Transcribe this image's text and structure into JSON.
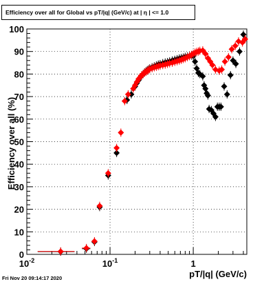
{
  "chart_data": {
    "type": "scatter",
    "title": "Efficiency over all for Global vs pT/|q| (GeV/c) at |  η | <= 1.0",
    "xlabel": "pT/|q| (GeV/c)",
    "ylabel": "Efficiency over all (%)",
    "xscale": "log",
    "xlim": [
      0.01,
      4.4
    ],
    "ylim": [
      0,
      100
    ],
    "yticks": [
      0,
      10,
      20,
      30,
      40,
      50,
      60,
      70,
      80,
      90,
      100
    ],
    "xtick_labels": [
      {
        "value": 0.01,
        "base": "10",
        "exp": "-2"
      },
      {
        "value": 0.1,
        "base": "10",
        "exp": "-1"
      },
      {
        "value": 1,
        "base": "1",
        "exp": ""
      }
    ],
    "grid": true,
    "series": [
      {
        "color": "#000000",
        "marker": "diamond",
        "points": [
          [
            0.0255,
            1.2,
            0.012
          ],
          [
            0.052,
            2.5,
            0.006
          ],
          [
            0.065,
            5.5,
            0.004
          ],
          [
            0.075,
            21.0,
            0.004
          ],
          [
            0.095,
            35.0,
            0.006
          ],
          [
            0.12,
            45.0,
            0.006
          ],
          [
            0.16,
            68.5,
            0.003
          ],
          [
            0.18,
            71.0,
            0.003
          ],
          [
            0.2,
            74.5,
            0.002
          ],
          [
            0.21,
            76.0,
            0.002
          ],
          [
            0.22,
            77.2,
            0.002
          ],
          [
            0.23,
            78.5,
            0.002
          ],
          [
            0.24,
            79.3,
            0.002
          ],
          [
            0.25,
            80.0,
            0.002
          ],
          [
            0.26,
            80.7,
            0.002
          ],
          [
            0.27,
            81.2,
            0.002
          ],
          [
            0.28,
            81.7,
            0.002
          ],
          [
            0.29,
            82.1,
            0.002
          ],
          [
            0.3,
            82.5,
            0.002
          ],
          [
            0.32,
            83.0,
            0.002
          ],
          [
            0.34,
            83.4,
            0.002
          ],
          [
            0.36,
            83.8,
            0.002
          ],
          [
            0.38,
            84.2,
            0.002
          ],
          [
            0.4,
            84.4,
            0.002
          ],
          [
            0.43,
            84.8,
            0.002
          ],
          [
            0.46,
            85.1,
            0.002
          ],
          [
            0.49,
            85.3,
            0.002
          ],
          [
            0.52,
            85.6,
            0.002
          ],
          [
            0.56,
            86.0,
            0.002
          ],
          [
            0.6,
            86.3,
            0.002
          ],
          [
            0.64,
            86.6,
            0.002
          ],
          [
            0.68,
            86.9,
            0.002
          ],
          [
            0.72,
            87.1,
            0.002
          ],
          [
            0.76,
            87.3,
            0.002
          ],
          [
            0.8,
            87.6,
            0.002
          ],
          [
            0.85,
            87.8,
            0.002
          ],
          [
            0.9,
            88.0,
            0.002
          ],
          [
            0.95,
            88.2,
            0.002
          ],
          [
            1.0,
            88.0,
            0.002
          ],
          [
            1.05,
            85.5,
            0.002
          ],
          [
            1.1,
            82.5,
            0.002
          ],
          [
            1.15,
            80.5,
            0.002
          ],
          [
            1.2,
            80.0,
            0.002
          ],
          [
            1.3,
            79.0,
            0.002
          ],
          [
            1.35,
            75.0,
            0.002
          ],
          [
            1.4,
            73.5,
            0.002
          ],
          [
            1.45,
            71.5,
            0.002
          ],
          [
            1.5,
            70.5,
            0.002
          ],
          [
            1.55,
            64.5,
            0.002
          ],
          [
            1.65,
            64.0,
            0.002
          ],
          [
            1.75,
            62.5,
            0.002
          ],
          [
            1.85,
            61.0,
            0.002
          ],
          [
            1.95,
            65.5,
            0.002
          ],
          [
            2.05,
            65.5,
            0.002
          ],
          [
            2.15,
            65.5,
            0.002
          ],
          [
            2.35,
            74.5,
            0.002
          ],
          [
            2.55,
            71.0,
            0.002
          ],
          [
            2.8,
            79.5,
            0.002
          ],
          [
            3.0,
            86.0,
            0.002
          ],
          [
            3.25,
            84.5,
            0.002
          ],
          [
            3.6,
            90.0,
            0.002
          ],
          [
            4.0,
            97.5,
            0.002
          ]
        ]
      },
      {
        "color": "#ff0000",
        "marker": "diamond",
        "points": [
          [
            0.0255,
            1.3,
            0.012
          ],
          [
            0.052,
            2.8,
            0.006
          ],
          [
            0.065,
            5.8,
            0.004
          ],
          [
            0.075,
            21.5,
            0.004
          ],
          [
            0.095,
            36.0,
            0.006
          ],
          [
            0.12,
            47.2,
            0.006
          ],
          [
            0.135,
            54.0,
            0.003
          ],
          [
            0.15,
            68.0,
            0.003
          ],
          [
            0.165,
            71.0,
            0.003
          ],
          [
            0.19,
            73.5,
            0.002
          ],
          [
            0.2,
            75.0,
            0.002
          ],
          [
            0.21,
            76.5,
            0.002
          ],
          [
            0.22,
            77.8,
            0.002
          ],
          [
            0.23,
            78.6,
            0.002
          ],
          [
            0.24,
            79.5,
            0.002
          ],
          [
            0.25,
            80.0,
            0.002
          ],
          [
            0.26,
            80.6,
            0.002
          ],
          [
            0.27,
            81.0,
            0.002
          ],
          [
            0.28,
            81.4,
            0.002
          ],
          [
            0.29,
            81.8,
            0.002
          ],
          [
            0.3,
            82.2,
            0.002
          ],
          [
            0.32,
            82.6,
            0.002
          ],
          [
            0.34,
            83.0,
            0.002
          ],
          [
            0.36,
            83.2,
            0.002
          ],
          [
            0.38,
            83.5,
            0.002
          ],
          [
            0.4,
            83.7,
            0.002
          ],
          [
            0.43,
            84.0,
            0.002
          ],
          [
            0.46,
            84.2,
            0.002
          ],
          [
            0.49,
            84.5,
            0.002
          ],
          [
            0.52,
            84.8,
            0.002
          ],
          [
            0.56,
            85.0,
            0.002
          ],
          [
            0.6,
            85.4,
            0.002
          ],
          [
            0.64,
            85.7,
            0.002
          ],
          [
            0.68,
            86.0,
            0.002
          ],
          [
            0.72,
            86.3,
            0.002
          ],
          [
            0.76,
            86.7,
            0.002
          ],
          [
            0.8,
            87.0,
            0.002
          ],
          [
            0.85,
            87.5,
            0.002
          ],
          [
            0.9,
            88.0,
            0.002
          ],
          [
            0.95,
            88.5,
            0.002
          ],
          [
            1.0,
            89.0,
            0.002
          ],
          [
            1.05,
            89.5,
            0.002
          ],
          [
            1.1,
            89.8,
            0.002
          ],
          [
            1.15,
            90.0,
            0.002
          ],
          [
            1.2,
            90.3,
            0.002
          ],
          [
            1.3,
            90.5,
            0.002
          ],
          [
            1.4,
            89.0,
            0.002
          ],
          [
            1.5,
            87.0,
            0.002
          ],
          [
            1.6,
            85.5,
            0.002
          ],
          [
            1.7,
            84.0,
            0.002
          ],
          [
            1.85,
            82.0,
            0.002
          ],
          [
            2.05,
            81.5,
            0.002
          ],
          [
            2.2,
            82.0,
            0.002
          ],
          [
            2.4,
            85.5,
            0.002
          ],
          [
            2.65,
            87.5,
            0.002
          ],
          [
            2.9,
            91.0,
            0.002
          ],
          [
            3.2,
            92.5,
            0.002
          ],
          [
            3.5,
            94.5,
            0.002
          ],
          [
            3.9,
            94.0,
            0.002
          ],
          [
            4.2,
            95.5,
            0.002
          ]
        ]
      }
    ]
  },
  "footer": {
    "timestamp": "Fri Nov 20 09:14:17 2020"
  }
}
